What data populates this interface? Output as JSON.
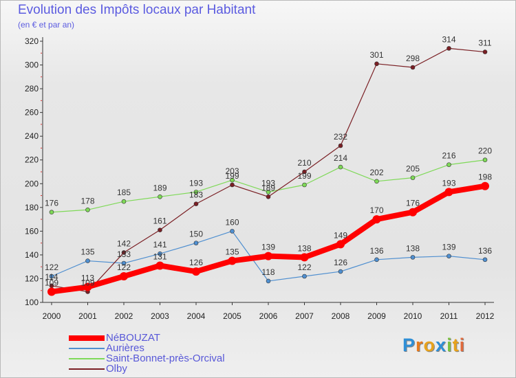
{
  "title": "Evolution des Impôts locaux par Habitant",
  "subtitle": "(en € et par an)",
  "brand": {
    "letters": [
      "P",
      "r",
      "o",
      "x",
      "i",
      "t",
      "i"
    ],
    "colors": [
      "#2f8fd6",
      "#e87a1c",
      "#e8a21c",
      "#2f8fd6",
      "#7cc142",
      "#e8a21c",
      "#e06a3c"
    ]
  },
  "chart_data": {
    "type": "line",
    "x": [
      2000,
      2001,
      2002,
      2003,
      2004,
      2005,
      2006,
      2007,
      2008,
      2009,
      2010,
      2011,
      2012
    ],
    "ylim": [
      100,
      320
    ],
    "yticks": [
      100,
      120,
      140,
      160,
      180,
      200,
      220,
      240,
      260,
      280,
      300,
      320
    ],
    "grid": false,
    "legend": "bottom-left",
    "series": [
      {
        "name": "Saint-Bonnet-près-Orcival",
        "color": "#7ed957",
        "values": [
          176,
          178,
          185,
          189,
          193,
          203,
          193,
          199,
          214,
          202,
          205,
          216,
          220
        ]
      },
      {
        "name": "Aurières",
        "color": "#4f8fd0",
        "values": [
          122,
          135,
          133,
          141,
          150,
          160,
          118,
          122,
          126,
          136,
          138,
          139,
          136
        ]
      },
      {
        "name": "Olby",
        "color": "#7a1f24",
        "values": [
          114,
          109,
          142,
          161,
          183,
          199,
          189,
          210,
          232,
          301,
          298,
          314,
          311
        ]
      },
      {
        "name": "NéBOUZAT",
        "color": "#ff0000",
        "values": [
          109,
          113,
          122,
          131,
          126,
          135,
          139,
          138,
          149,
          170,
          176,
          193,
          198
        ]
      }
    ],
    "legend_order": [
      "NéBOUZAT",
      "Aurières",
      "Saint-Bonnet-près-Orcival",
      "Olby"
    ]
  }
}
